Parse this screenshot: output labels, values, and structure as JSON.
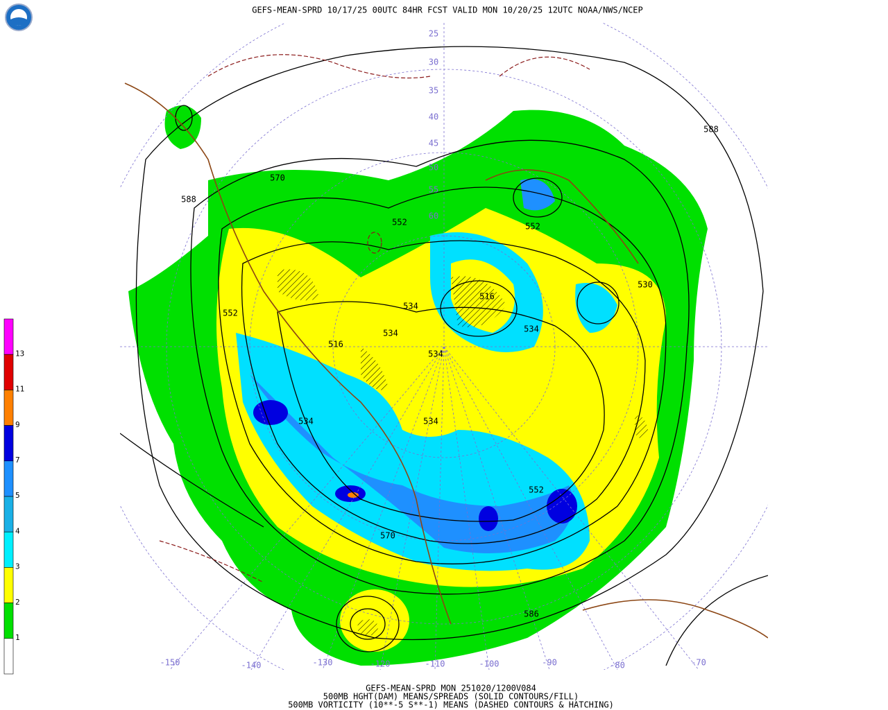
{
  "header": {
    "title": "GEFS-MEAN-SPRD 10/17/25 00UTC 84HR FCST VALID MON 10/20/25 12UTC NOAA/NWS/NCEP"
  },
  "colorbar": {
    "labels": [
      "1",
      "2",
      "3",
      "4",
      "5",
      "7",
      "9",
      "11",
      "13"
    ]
  },
  "map": {
    "lon_labels": [
      "-150",
      "-140",
      "-130",
      "-120",
      "-110",
      "-100",
      "-90",
      "-80",
      "-70"
    ],
    "lat_labels": [
      "25",
      "30",
      "35",
      "40",
      "45",
      "50",
      "55",
      "60"
    ],
    "contour_labels": [
      "570",
      "588",
      "552",
      "552",
      "588",
      "552",
      "516",
      "534",
      "534",
      "516",
      "534",
      "534",
      "530",
      "534",
      "534",
      "552",
      "570",
      "586"
    ]
  },
  "footer": {
    "lines": [
      "GEFS-MEAN-SPRD MON 251020/1200V084",
      "500MB HGHT(DAM) MEANS/SPREADS (SOLID CONTOURS/FILL)",
      "500MB VORTICITY (10**-5 S**-1) MEANS (DASHED CONTOURS & HATCHING)"
    ]
  }
}
